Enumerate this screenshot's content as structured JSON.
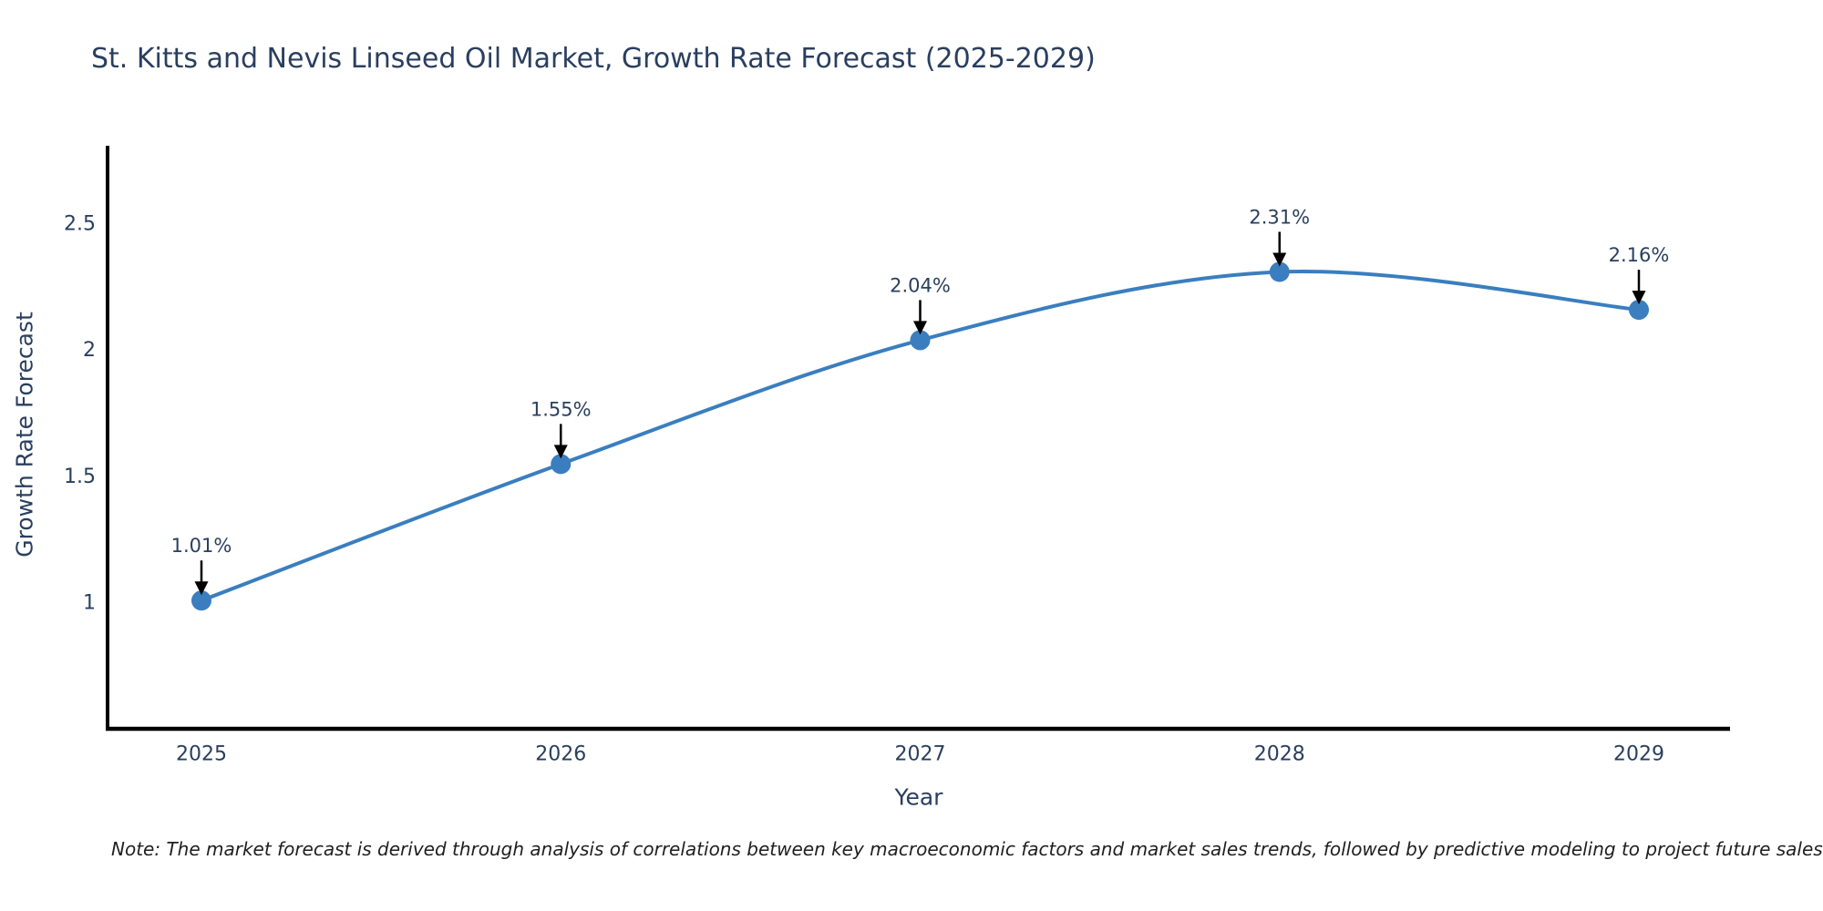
{
  "title": "St. Kitts and Nevis Linseed Oil Market, Growth Rate Forecast (2025-2029)",
  "note": "Note: The market forecast is derived through analysis of correlations between key macroeconomic factors and market sales trends, followed by predictive modeling to project future sales",
  "chart_data": {
    "type": "line",
    "line_shape": "spline",
    "title": "St. Kitts and Nevis Linseed Oil Market, Growth Rate Forecast (2025-2029)",
    "xlabel": "Year",
    "ylabel": "Growth Rate Forecast",
    "categories": [
      "2025",
      "2026",
      "2027",
      "2028",
      "2029"
    ],
    "series": [
      {
        "name": "Growth Rate Forecast",
        "values": [
          1.01,
          1.55,
          2.04,
          2.31,
          2.16
        ]
      }
    ],
    "point_labels": [
      "1.01%",
      "1.55%",
      "2.04%",
      "2.31%",
      "2.16%"
    ],
    "yticks": [
      1,
      1.5,
      2,
      2.5
    ],
    "ylim": [
      0.5,
      2.81
    ],
    "grid": false,
    "legend_position": "none",
    "marker": "circle",
    "annotation_arrows": true,
    "colors": {
      "line": "#3a7ebf",
      "marker": "#3a7ebf",
      "arrow": "#000000",
      "axis": "#000000",
      "tick_text": "#2a3f5f",
      "annotation_text": "#2a3f5f",
      "title_text": "#2a3f5f",
      "note_text": "#1f1f1f",
      "background": "#ffffff"
    }
  }
}
